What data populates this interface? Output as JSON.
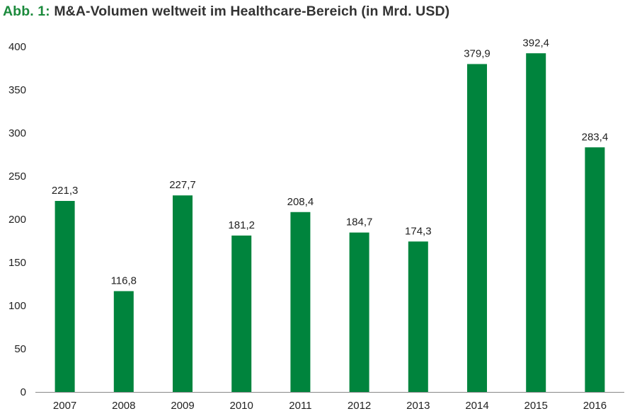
{
  "title": {
    "prefix": "Abb. 1:",
    "text": "M&A-Volumen weltweit im Healthcare-Bereich (in Mrd. USD)"
  },
  "colors": {
    "bar": "#00843d",
    "prefix": "#1b8a3c",
    "axis": "#888888"
  },
  "chart_data": {
    "type": "bar",
    "title": "M&A-Volumen weltweit im Healthcare-Bereich (in Mrd. USD)",
    "xlabel": "",
    "ylabel": "",
    "categories": [
      "2007",
      "2008",
      "2009",
      "2010",
      "2011",
      "2012",
      "2013",
      "2014",
      "2015",
      "2016"
    ],
    "values": [
      221.3,
      116.8,
      227.7,
      181.2,
      208.4,
      184.7,
      174.3,
      379.9,
      392.4,
      283.4
    ],
    "value_labels": [
      "221,3",
      "116,8",
      "227,7",
      "181,2",
      "208,4",
      "184,7",
      "174,3",
      "379,9",
      "392,4",
      "283,4"
    ],
    "ylim": [
      0,
      400
    ],
    "yticks": [
      0,
      50,
      100,
      150,
      200,
      250,
      300,
      350,
      400
    ],
    "grid": false,
    "legend": "none"
  }
}
